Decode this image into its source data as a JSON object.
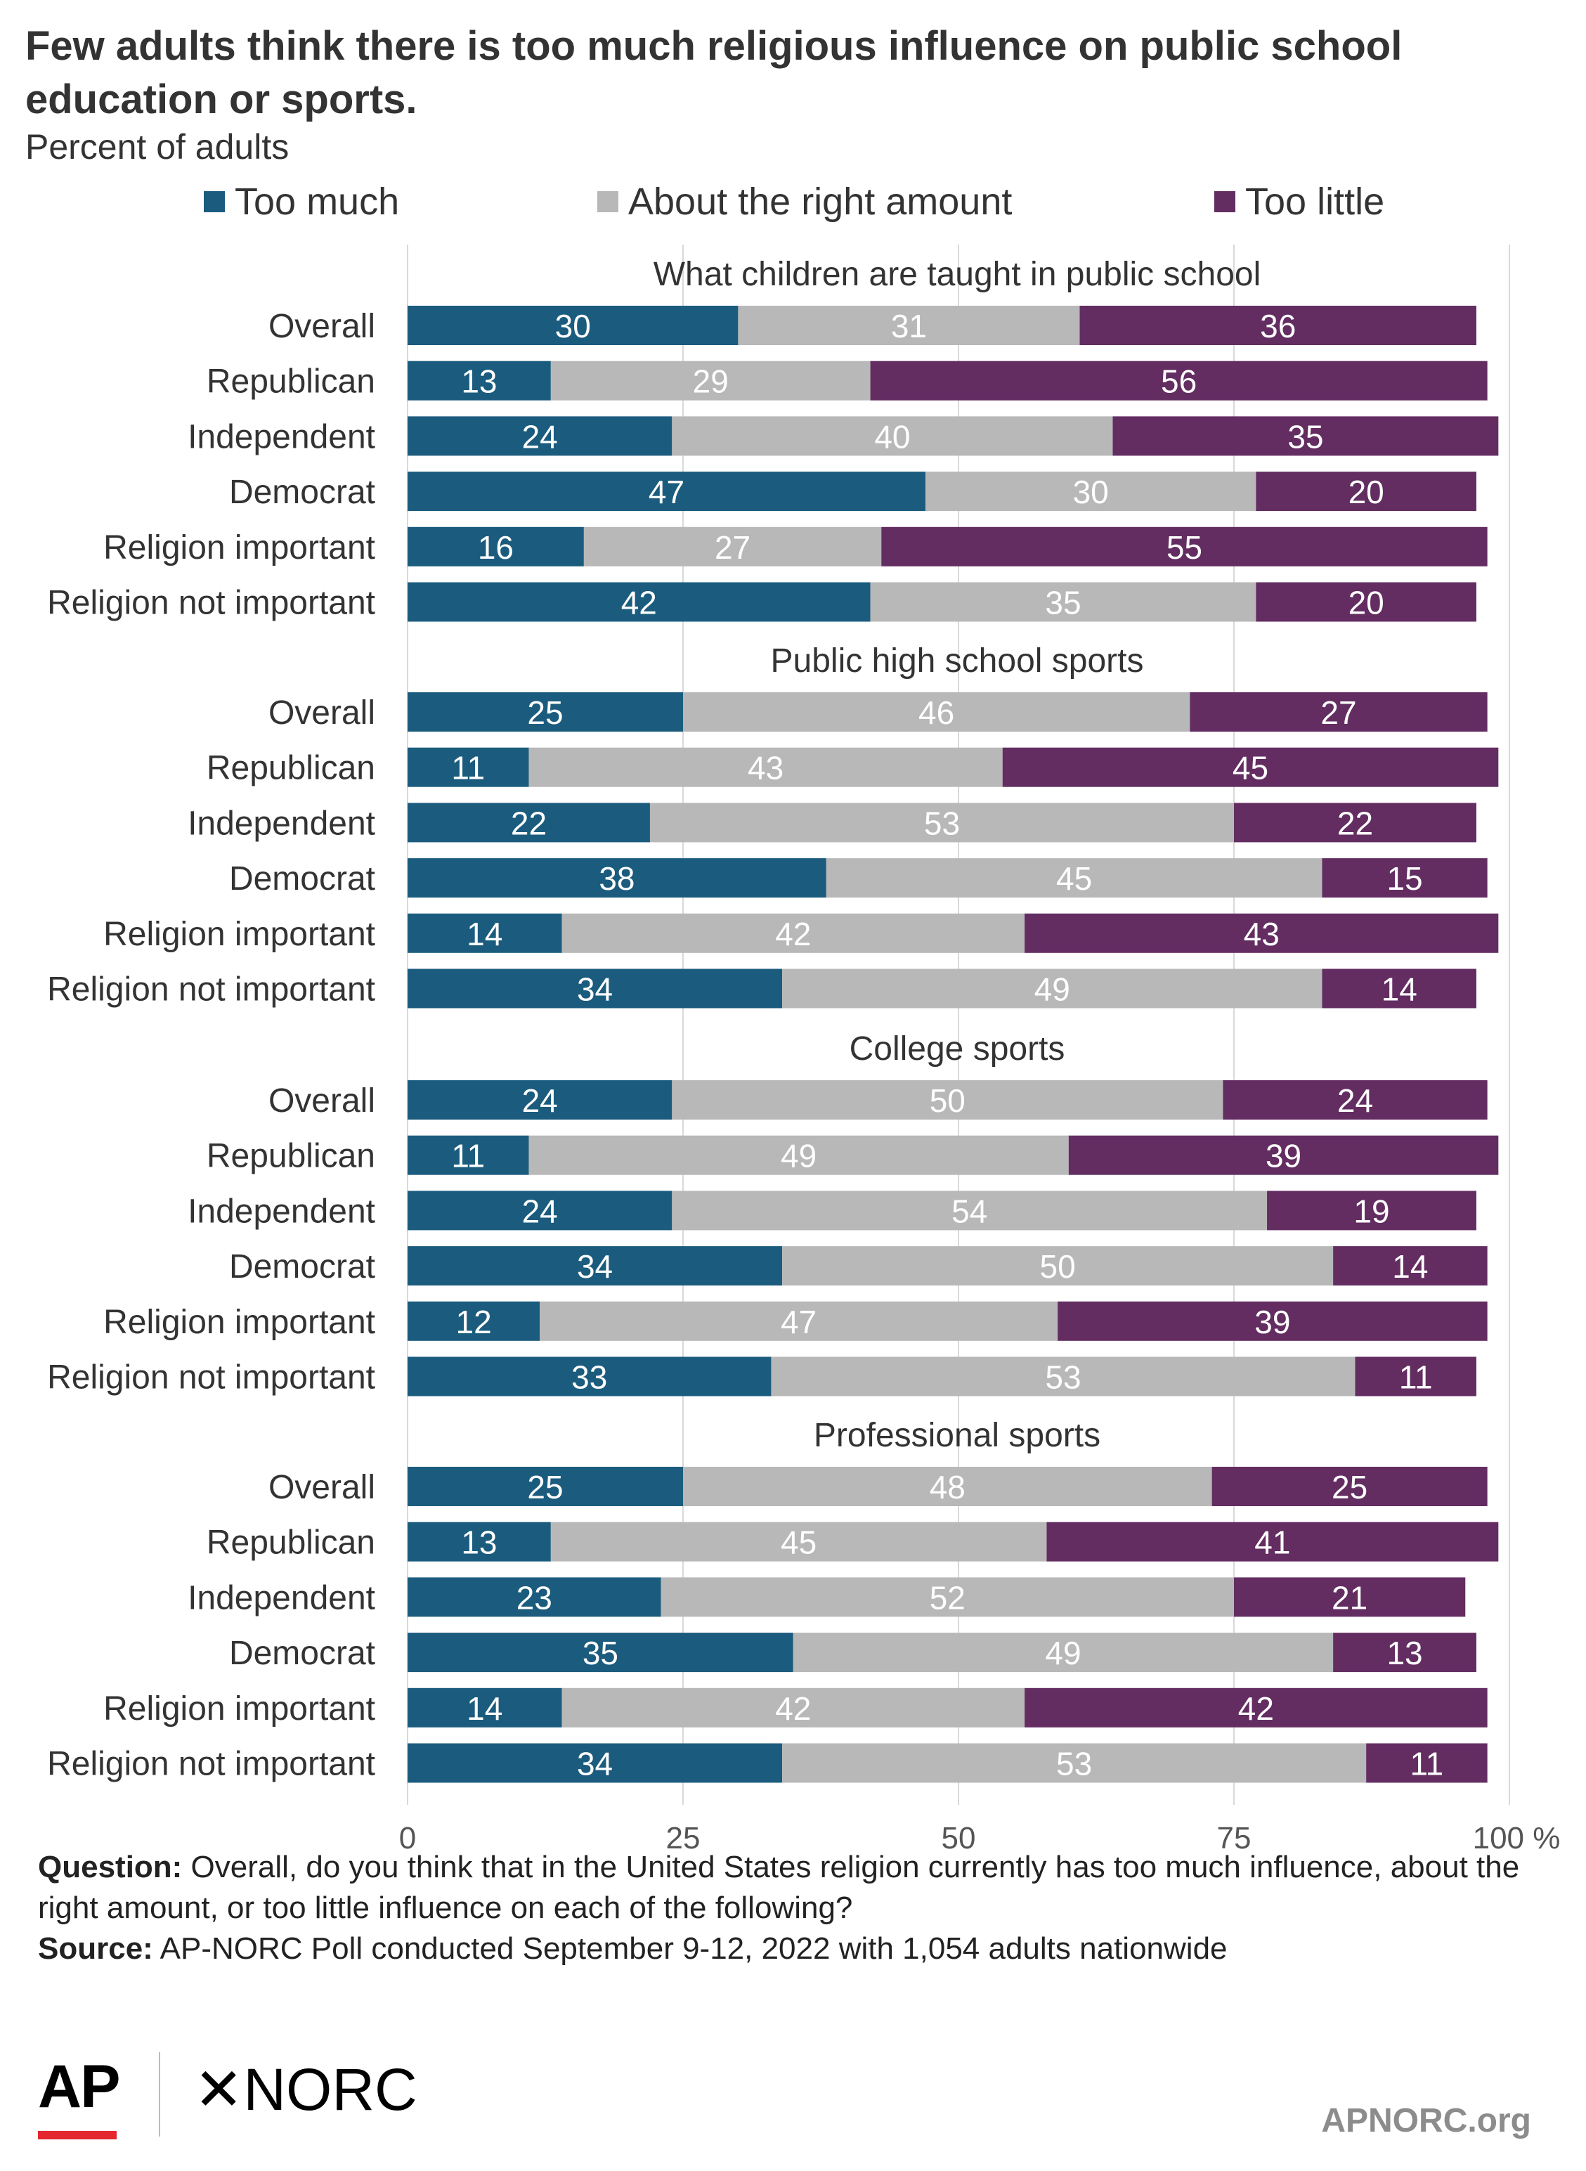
{
  "title": "Few adults think there is too much religious influence on public school education or sports.",
  "subtitle": "Percent of adults",
  "colors": {
    "too_much": "#1b5c7e",
    "about_right": "#b8b8b8",
    "too_little": "#632d62",
    "grid": "#d9d9d9"
  },
  "footer": {
    "question_label": "Question:",
    "question_text": " Overall, do you think that in the United States religion currently has too much influence, about the right amount, or too little influence on each of the following?",
    "source_label": "Source:",
    "source_text": " AP-NORC Poll conducted September 9-12, 2022 with 1,054 adults nationwide"
  },
  "logos": {
    "ap": "AP",
    "norc": "NORC",
    "norc_mark": "✕",
    "site": "APNORC.org"
  },
  "chart_data": {
    "type": "bar",
    "orientation": "horizontal",
    "stacked": true,
    "xlim": [
      0,
      100
    ],
    "x_ticks": [
      "0",
      "25",
      "50",
      "75",
      "100 %"
    ],
    "x_tick_values": [
      0,
      25,
      50,
      75,
      100
    ],
    "grid": true,
    "legend_position": "top",
    "series": [
      {
        "name": "Too much",
        "key": "too_much"
      },
      {
        "name": "About the right amount",
        "key": "about_right"
      },
      {
        "name": "Too little",
        "key": "too_little"
      }
    ],
    "groups": [
      {
        "title": "What children are taught in public school",
        "categories": [
          "Overall",
          "Republican",
          "Independent",
          "Democrat",
          "Religion important",
          "Religion not important"
        ],
        "too_much": [
          30,
          13,
          24,
          47,
          16,
          42
        ],
        "about_right": [
          31,
          29,
          40,
          30,
          27,
          35
        ],
        "too_little": [
          36,
          56,
          35,
          20,
          55,
          20
        ]
      },
      {
        "title": "Public high school sports",
        "categories": [
          "Overall",
          "Republican",
          "Independent",
          "Democrat",
          "Religion important",
          "Religion not important"
        ],
        "too_much": [
          25,
          11,
          22,
          38,
          14,
          34
        ],
        "about_right": [
          46,
          43,
          53,
          45,
          42,
          49
        ],
        "too_little": [
          27,
          45,
          22,
          15,
          43,
          14
        ]
      },
      {
        "title": "College sports",
        "categories": [
          "Overall",
          "Republican",
          "Independent",
          "Democrat",
          "Religion important",
          "Religion not important"
        ],
        "too_much": [
          24,
          11,
          24,
          34,
          12,
          33
        ],
        "about_right": [
          50,
          49,
          54,
          50,
          47,
          53
        ],
        "too_little": [
          24,
          39,
          19,
          14,
          39,
          11
        ]
      },
      {
        "title": "Professional sports",
        "categories": [
          "Overall",
          "Republican",
          "Independent",
          "Democrat",
          "Religion important",
          "Religion not important"
        ],
        "too_much": [
          25,
          13,
          23,
          35,
          14,
          34
        ],
        "about_right": [
          48,
          45,
          52,
          49,
          42,
          53
        ],
        "too_little": [
          25,
          41,
          21,
          13,
          42,
          11
        ]
      }
    ]
  }
}
